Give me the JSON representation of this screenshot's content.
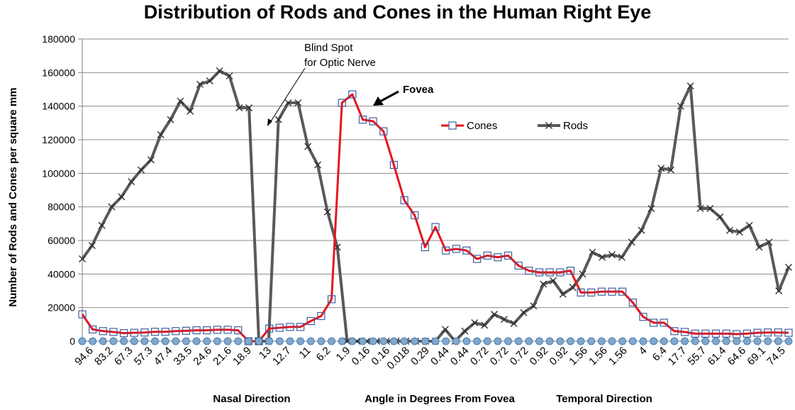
{
  "chart_data": {
    "type": "line",
    "title": "Distribution of Rods and Cones in the Human Right Eye",
    "ylabel": "Number of Rods and Cones per square mm",
    "ylim": [
      0,
      180000
    ],
    "yticks": [
      0,
      20000,
      40000,
      60000,
      80000,
      100000,
      120000,
      140000,
      160000,
      180000
    ],
    "gridlines": true,
    "legend_position": "upper-middle",
    "x_tick_labels": [
      "94.6",
      "83.2",
      "67.3",
      "57.3",
      "47.4",
      "33.5",
      "24.6",
      "21.6",
      "18.9",
      "13",
      "12.7",
      "11",
      "6.2",
      "1.9",
      "0.16",
      "0.16",
      "0.018",
      "0.29",
      "0.44",
      "0.44",
      "0.72",
      "0.72",
      "0.72",
      "0.92",
      "0.92",
      "1.56",
      "1.56",
      "1.56",
      "4",
      "6.4",
      "17.7",
      "55.7",
      "61.4",
      "64.6",
      "69.1",
      "74.5"
    ],
    "x_bottom_labels": [
      "Nasal Direction",
      "Angle in Degrees From Fovea",
      "Temporal Direction"
    ],
    "annotations": [
      {
        "id": "blind_spot",
        "lines": [
          "Blind Spot",
          "for Optic Nerve"
        ]
      },
      {
        "id": "fovea",
        "lines": [
          "Fovea"
        ]
      }
    ],
    "series": [
      {
        "name": "Cones",
        "color": "#e8141e",
        "marker": "open-square",
        "values": [
          16000,
          7000,
          6000,
          5500,
          4800,
          5000,
          5200,
          5600,
          5600,
          6000,
          6200,
          6500,
          6500,
          6800,
          6800,
          6500,
          0,
          0,
          7500,
          8000,
          8500,
          8500,
          12000,
          15000,
          25000,
          142000,
          147000,
          132000,
          131000,
          125000,
          105000,
          84000,
          75000,
          56000,
          68000,
          54000,
          55000,
          54000,
          49000,
          51000,
          50000,
          51000,
          45000,
          42000,
          41000,
          41000,
          41000,
          42000,
          29000,
          29000,
          29500,
          29500,
          29500,
          23000,
          14500,
          11000,
          11000,
          6000,
          5500,
          4500,
          4500,
          4500,
          4500,
          4200,
          4500,
          5000,
          5200,
          5200,
          5000
        ]
      },
      {
        "name": "Rods",
        "color": "#595959",
        "marker": "x",
        "values": [
          49000,
          57000,
          69000,
          80000,
          86000,
          95000,
          102000,
          108000,
          123000,
          132000,
          143000,
          137000,
          153000,
          155000,
          161000,
          158000,
          139000,
          139000,
          0,
          0,
          132000,
          142000,
          142000,
          116000,
          105000,
          77000,
          56000,
          0,
          0,
          0,
          0,
          0,
          0,
          0,
          0,
          0,
          0,
          7000,
          0,
          6000,
          11000,
          9500,
          16000,
          13000,
          10500,
          17000,
          21000,
          34000,
          36000,
          28000,
          32000,
          40000,
          53000,
          50000,
          51500,
          50000,
          59000,
          66000,
          79000,
          103000,
          102000,
          140000,
          152000,
          79000,
          79000,
          74000,
          66000,
          65000,
          69000,
          56000,
          59000,
          30000,
          44000
        ]
      }
    ]
  }
}
